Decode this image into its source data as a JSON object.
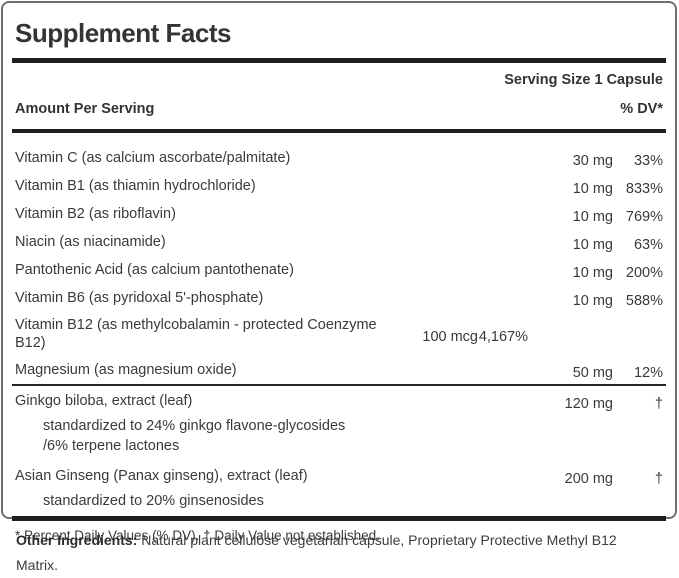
{
  "panel": {
    "title": "Supplement Facts",
    "serving_size": "Serving Size 1 Capsule",
    "columns": {
      "amount_header": "Amount Per Serving",
      "dv_header": "% DV*"
    },
    "rows": [
      {
        "name": "Vitamin C (as calcium ascorbate/palmitate)",
        "amount": "30 mg",
        "dv": "33%"
      },
      {
        "name": "Vitamin B1 (as thiamin hydrochloride)",
        "amount": "10 mg",
        "dv": "833%"
      },
      {
        "name": "Vitamin B2 (as riboflavin)",
        "amount": "10 mg",
        "dv": "769%"
      },
      {
        "name": "Niacin (as niacinamide)",
        "amount": "10 mg",
        "dv": "63%"
      },
      {
        "name": "Pantothenic Acid (as calcium pantothenate)",
        "amount": "10 mg",
        "dv": "200%"
      },
      {
        "name": "Vitamin B6 (as pyridoxal 5'-phosphate)",
        "amount": "10 mg",
        "dv": "588%"
      },
      {
        "name": "Vitamin B12 (as methylcobalamin - protected Coenzyme B12)",
        "amount": "100 mcg",
        "dv": "4,167%"
      },
      {
        "name": "Magnesium (as magnesium oxide)",
        "amount": "50 mg",
        "dv": "12%"
      }
    ],
    "botanicals": [
      {
        "name": "Ginkgo biloba, extract (leaf)",
        "amount": "120 mg",
        "dv": "†",
        "sub": [
          "standardized to 24% ginkgo flavone-glycosides",
          "/6% terpene lactones"
        ]
      },
      {
        "name": "Asian Ginseng (Panax ginseng), extract (leaf)",
        "amount": "200 mg",
        "dv": "†",
        "sub": [
          "standardized to 20% ginsenosides"
        ]
      }
    ],
    "footnote": "* Percent Daily Values (% DV). † Daily Value not established."
  },
  "other_ingredients": {
    "label": "Other Ingredients:",
    "text": "Natural plant cellulose vegetarian capsule, Proprietary Protective Methyl B12 Matrix."
  },
  "colors": {
    "text": "#3a3a3a",
    "rule": "#1f1f1f",
    "border": "#6f6f6f"
  }
}
